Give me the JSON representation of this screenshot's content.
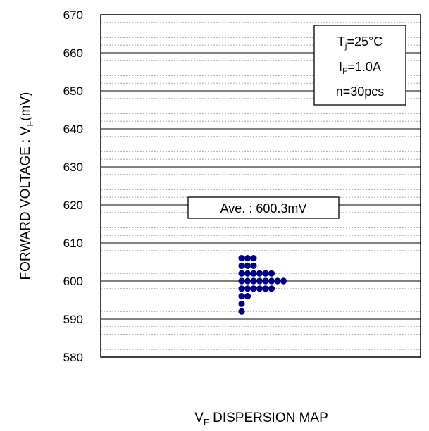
{
  "chart_data": {
    "type": "scatter",
    "title": "",
    "xlabel": {
      "main": "V",
      "sub": "F",
      "rest": " DISPERSION MAP"
    },
    "ylabel": {
      "main": "FORWARD VOLTAGE : V",
      "sub": "F",
      "rest": "(mV)"
    },
    "ylim": [
      580,
      670
    ],
    "ytick_step": 10,
    "yticks": [
      580,
      590,
      600,
      610,
      620,
      630,
      640,
      650,
      660,
      670
    ],
    "minor_grid_step": 2,
    "grid": true,
    "point_color": "#00007f",
    "conditions": [
      {
        "main": "T",
        "sub": "j",
        "rest": "=25°C"
      },
      {
        "main": "I",
        "sub": "F",
        "rest": "=1.0A"
      },
      {
        "main": "n=30pcs",
        "sub": "",
        "rest": ""
      }
    ],
    "average_label": "Ave. : 600.3mV",
    "bins": [
      {
        "value": 592,
        "count": 1
      },
      {
        "value": 594,
        "count": 1
      },
      {
        "value": 596,
        "count": 2
      },
      {
        "value": 598,
        "count": 6
      },
      {
        "value": 600,
        "count": 8
      },
      {
        "value": 602,
        "count": 6
      },
      {
        "value": 604,
        "count": 3
      },
      {
        "value": 606,
        "count": 3
      }
    ]
  }
}
